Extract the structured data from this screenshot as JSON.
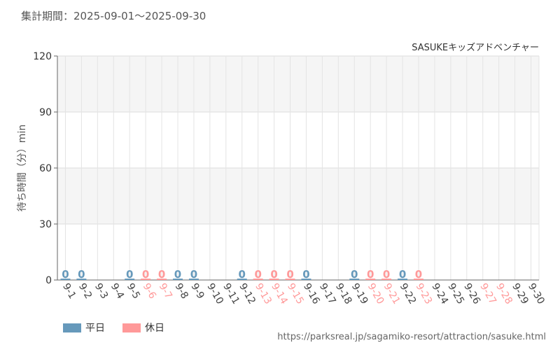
{
  "header": {
    "period_label": "集計期間：2025-09-01～2025-09-30"
  },
  "colors": {
    "weekday": "#6699bb",
    "holiday": "#ff9999",
    "axis_text": "#555555",
    "grid": "#dddddd",
    "band": "#f5f5f5"
  },
  "chart_data": {
    "type": "bar",
    "title": "SASUKEキッズアドベンチャー",
    "ylabel": "待ち時間（分）min",
    "ylim": [
      0,
      120
    ],
    "yticks": [
      0,
      30,
      60,
      90,
      120
    ],
    "grid": true,
    "legend_position": "bottom-left",
    "categories": [
      "9-1",
      "9-2",
      "9-3",
      "9-4",
      "9-5",
      "9-6",
      "9-7",
      "9-8",
      "9-9",
      "9-10",
      "9-11",
      "9-12",
      "9-13",
      "9-14",
      "9-15",
      "9-16",
      "9-17",
      "9-18",
      "9-19",
      "9-20",
      "9-21",
      "9-22",
      "9-23",
      "9-24",
      "9-25",
      "9-26",
      "9-27",
      "9-28",
      "9-29",
      "9-30"
    ],
    "day_type": [
      "weekday",
      "weekday",
      "weekday",
      "weekday",
      "weekday",
      "holiday",
      "holiday",
      "weekday",
      "weekday",
      "weekday",
      "weekday",
      "weekday",
      "holiday",
      "holiday",
      "holiday",
      "weekday",
      "weekday",
      "weekday",
      "weekday",
      "holiday",
      "holiday",
      "weekday",
      "holiday",
      "weekday",
      "weekday",
      "weekday",
      "holiday",
      "holiday",
      "weekday",
      "weekday"
    ],
    "values": [
      0,
      0,
      null,
      null,
      0,
      0,
      0,
      0,
      0,
      null,
      null,
      0,
      0,
      0,
      0,
      0,
      null,
      null,
      0,
      0,
      0,
      0,
      0,
      null,
      null,
      null,
      null,
      null,
      null,
      null
    ],
    "series": [
      {
        "name": "平日",
        "key": "weekday"
      },
      {
        "name": "休日",
        "key": "holiday"
      }
    ]
  },
  "footer": {
    "source_url": "https://parksreal.jp/sagamiko-resort/attraction/sasuke.html"
  }
}
